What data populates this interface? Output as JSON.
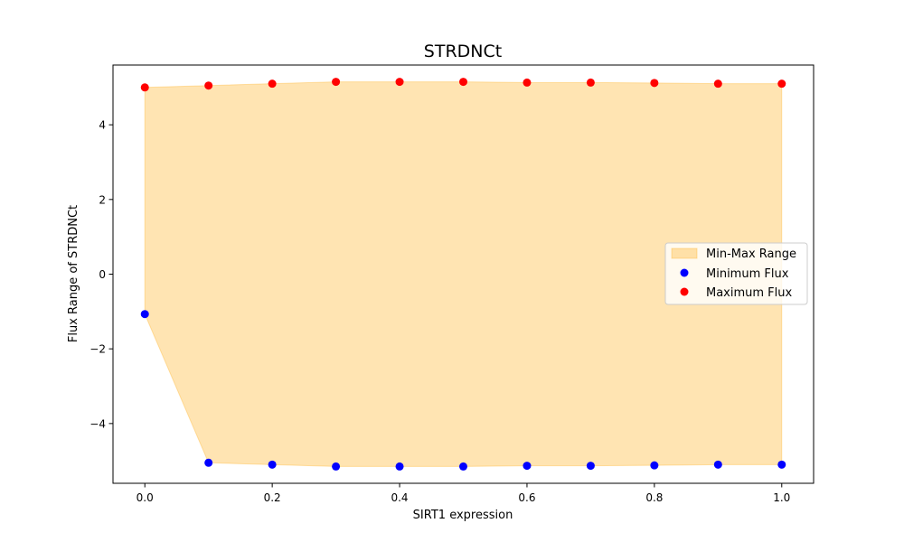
{
  "chart_data": {
    "type": "scatter",
    "title": "STRDNCt",
    "xlabel": "SIRT1 expression",
    "ylabel": "Flux Range of STRDNCt",
    "xlim": [
      -0.05,
      1.05
    ],
    "ylim": [
      -5.6,
      5.6
    ],
    "xticks": [
      0.0,
      0.2,
      0.4,
      0.6,
      0.8,
      1.0
    ],
    "xtick_labels": [
      "0.0",
      "0.2",
      "0.4",
      "0.6",
      "0.8",
      "1.0"
    ],
    "yticks": [
      -4,
      -2,
      0,
      2,
      4
    ],
    "ytick_labels": [
      "−4",
      "−2",
      "0",
      "2",
      "4"
    ],
    "x": [
      0.0,
      0.1,
      0.2,
      0.3,
      0.4,
      0.5,
      0.6,
      0.7,
      0.8,
      0.9,
      1.0
    ],
    "series": [
      {
        "name": "Minimum Flux",
        "color": "#0000ff",
        "values": [
          -1.07,
          -5.05,
          -5.1,
          -5.15,
          -5.15,
          -5.15,
          -5.13,
          -5.13,
          -5.12,
          -5.1,
          -5.1
        ]
      },
      {
        "name": "Maximum Flux",
        "color": "#ff0000",
        "values": [
          5.0,
          5.05,
          5.1,
          5.15,
          5.15,
          5.15,
          5.13,
          5.13,
          5.12,
          5.1,
          5.1
        ]
      }
    ],
    "fill": {
      "name": "Min-Max Range",
      "color": "#ffa500",
      "opacity": 0.3
    },
    "legend_position": "center-right",
    "grid": false
  }
}
